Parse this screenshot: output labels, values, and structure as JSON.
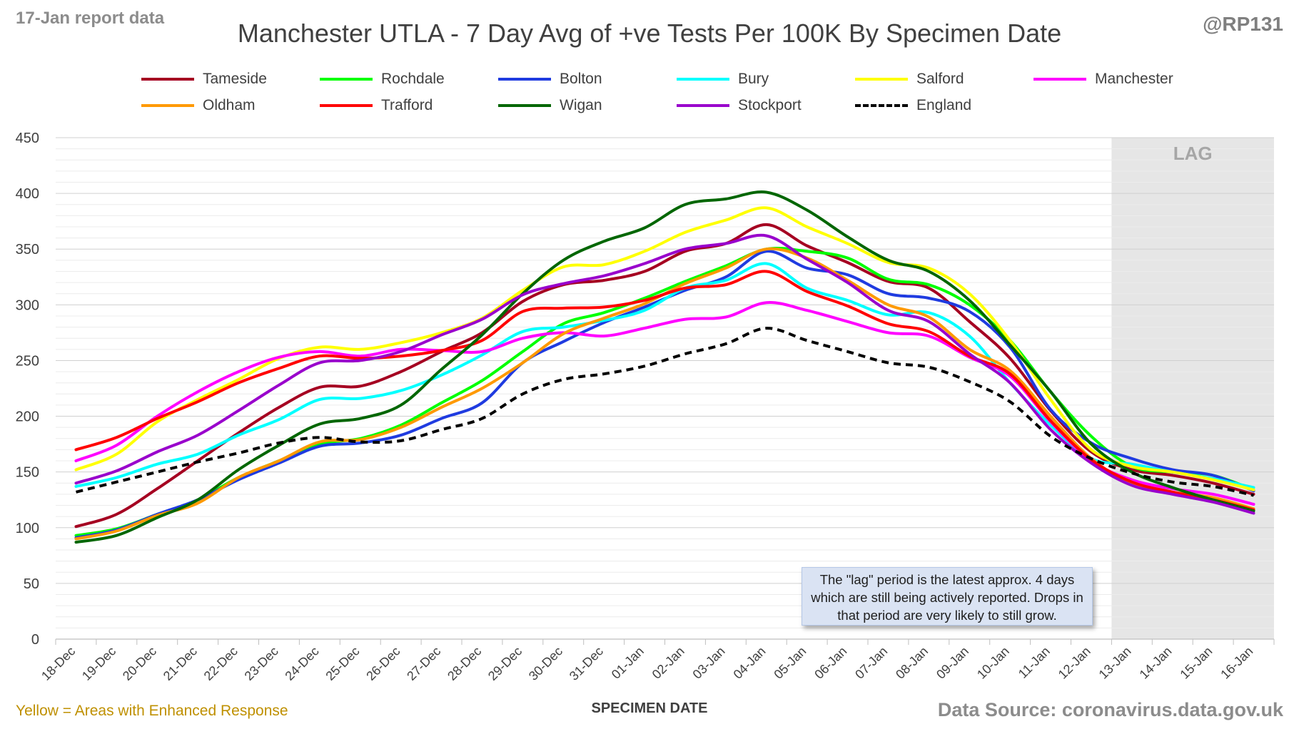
{
  "header": {
    "report_label": "17-Jan report data",
    "handle": "@RP131",
    "enhanced_note": "Yellow = Areas with Enhanced Response",
    "source": "Data Source: coronavirus.data.gov.uk"
  },
  "note": "The \"lag\" period is the latest approx. 4 days which are still being actively reported.  Drops in that period are very likely to still grow.",
  "lag_label": "LAG",
  "chart_data": {
    "type": "line",
    "title": "Manchester UTLA - 7 Day Avg of +ve Tests Per 100K By Specimen Date",
    "xlabel": "SPECIMEN DATE",
    "ylabel": "",
    "ylim": [
      0,
      450
    ],
    "yticks": [
      0,
      50,
      100,
      150,
      200,
      250,
      300,
      350,
      400,
      450
    ],
    "legend_position": "top",
    "grid": true,
    "lag_period": [
      "13-Jan",
      "16-Jan"
    ],
    "categories": [
      "18-Dec",
      "19-Dec",
      "20-Dec",
      "21-Dec",
      "22-Dec",
      "23-Dec",
      "24-Dec",
      "25-Dec",
      "26-Dec",
      "27-Dec",
      "28-Dec",
      "29-Dec",
      "30-Dec",
      "31-Dec",
      "01-Jan",
      "02-Jan",
      "03-Jan",
      "04-Jan",
      "05-Jan",
      "06-Jan",
      "07-Jan",
      "08-Jan",
      "09-Jan",
      "10-Jan",
      "11-Jan",
      "12-Jan",
      "13-Jan",
      "14-Jan",
      "15-Jan",
      "16-Jan"
    ],
    "series": [
      {
        "name": "Tameside",
        "color": "#a50021",
        "dashed": false,
        "values": [
          101,
          112,
          135,
          160,
          185,
          208,
          226,
          227,
          240,
          258,
          275,
          303,
          318,
          322,
          330,
          348,
          355,
          372,
          353,
          338,
          321,
          315,
          285,
          252,
          205,
          168,
          152,
          147,
          140,
          130
        ]
      },
      {
        "name": "Rochdale",
        "color": "#00ff00",
        "dashed": false,
        "values": [
          93,
          99,
          112,
          125,
          145,
          160,
          175,
          180,
          192,
          212,
          232,
          258,
          283,
          293,
          306,
          321,
          335,
          350,
          348,
          342,
          323,
          318,
          300,
          268,
          222,
          182,
          155,
          150,
          147,
          134
        ]
      },
      {
        "name": "Bolton",
        "color": "#1f3be0",
        "dashed": false,
        "values": [
          91,
          98,
          112,
          125,
          143,
          158,
          173,
          176,
          183,
          198,
          212,
          248,
          267,
          284,
          298,
          313,
          325,
          348,
          333,
          327,
          310,
          306,
          294,
          262,
          206,
          176,
          162,
          152,
          147,
          133
        ]
      },
      {
        "name": "Bury",
        "color": "#00ffff",
        "dashed": false,
        "values": [
          137,
          145,
          157,
          166,
          183,
          197,
          215,
          216,
          223,
          237,
          255,
          276,
          280,
          286,
          295,
          315,
          322,
          337,
          315,
          304,
          291,
          293,
          272,
          230,
          192,
          162,
          157,
          150,
          144,
          136
        ]
      },
      {
        "name": "Salford",
        "color": "#ffff00",
        "dashed": false,
        "values": [
          152,
          166,
          195,
          215,
          233,
          252,
          262,
          260,
          266,
          275,
          288,
          313,
          334,
          336,
          348,
          365,
          376,
          387,
          370,
          355,
          338,
          333,
          310,
          268,
          215,
          170,
          155,
          150,
          143,
          134
        ]
      },
      {
        "name": "Manchester",
        "color": "#ff00ff",
        "dashed": false,
        "values": [
          160,
          174,
          200,
          222,
          240,
          253,
          258,
          254,
          260,
          259,
          258,
          270,
          275,
          272,
          279,
          287,
          289,
          302,
          295,
          285,
          275,
          272,
          253,
          236,
          195,
          160,
          143,
          135,
          130,
          121
        ]
      },
      {
        "name": "Oldham",
        "color": "#ff9900",
        "dashed": false,
        "values": [
          90,
          97,
          111,
          122,
          145,
          160,
          177,
          179,
          190,
          208,
          225,
          248,
          274,
          288,
          301,
          319,
          333,
          350,
          342,
          322,
          300,
          289,
          260,
          241,
          200,
          162,
          140,
          132,
          127,
          117
        ]
      },
      {
        "name": "Trafford",
        "color": "#ff0000",
        "dashed": false,
        "values": [
          170,
          181,
          198,
          213,
          230,
          243,
          254,
          252,
          254,
          259,
          268,
          294,
          297,
          298,
          304,
          315,
          318,
          330,
          312,
          299,
          283,
          276,
          254,
          238,
          196,
          161,
          141,
          132,
          125,
          116
        ]
      },
      {
        "name": "Wigan",
        "color": "#006600",
        "dashed": false,
        "values": [
          87,
          93,
          109,
          125,
          152,
          174,
          193,
          198,
          210,
          242,
          273,
          310,
          340,
          357,
          369,
          390,
          395,
          401,
          385,
          361,
          340,
          330,
          304,
          264,
          222,
          175,
          150,
          136,
          125,
          115
        ]
      },
      {
        "name": "Stockport",
        "color": "#9900cc",
        "dashed": false,
        "values": [
          140,
          151,
          168,
          183,
          205,
          228,
          248,
          250,
          258,
          273,
          287,
          309,
          319,
          326,
          337,
          350,
          355,
          362,
          341,
          320,
          295,
          285,
          256,
          230,
          188,
          158,
          138,
          130,
          123,
          113
        ]
      },
      {
        "name": "England",
        "color": "#000000",
        "dashed": true,
        "values": [
          132,
          141,
          150,
          159,
          167,
          176,
          181,
          177,
          178,
          188,
          198,
          220,
          233,
          238,
          245,
          256,
          265,
          279,
          268,
          258,
          248,
          244,
          231,
          213,
          182,
          162,
          149,
          141,
          137,
          129
        ]
      }
    ]
  }
}
